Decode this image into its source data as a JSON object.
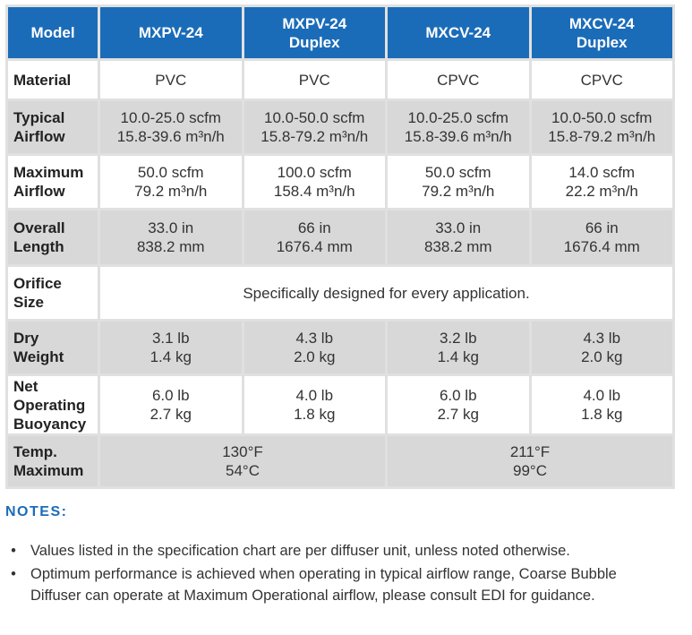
{
  "header": {
    "corner": "Model",
    "columns": [
      {
        "line1": "MXPV-24",
        "line2": ""
      },
      {
        "line1": "MXPV-24",
        "line2": "Duplex"
      },
      {
        "line1": "MXCV-24",
        "line2": ""
      },
      {
        "line1": "MXCV-24",
        "line2": "Duplex"
      }
    ]
  },
  "rows": {
    "material": {
      "label1": "Material",
      "label2": "",
      "cells": [
        {
          "l1": "PVC",
          "l2": ""
        },
        {
          "l1": "PVC",
          "l2": ""
        },
        {
          "l1": "CPVC",
          "l2": ""
        },
        {
          "l1": "CPVC",
          "l2": ""
        }
      ]
    },
    "typical_airflow": {
      "label1": "Typical",
      "label2": "Airflow",
      "cells": [
        {
          "l1": "10.0-25.0 scfm",
          "l2": "15.8-39.6 m³n/h"
        },
        {
          "l1": "10.0-50.0 scfm",
          "l2": "15.8-79.2 m³n/h"
        },
        {
          "l1": "10.0-25.0 scfm",
          "l2": "15.8-39.6 m³n/h"
        },
        {
          "l1": "10.0-50.0 scfm",
          "l2": "15.8-79.2 m³n/h"
        }
      ]
    },
    "maximum_airflow": {
      "label1": "Maximum",
      "label2": "Airflow",
      "cells": [
        {
          "l1": "50.0 scfm",
          "l2": "79.2 m³n/h"
        },
        {
          "l1": "100.0 scfm",
          "l2": "158.4 m³n/h"
        },
        {
          "l1": "50.0 scfm",
          "l2": "79.2 m³n/h"
        },
        {
          "l1": "14.0 scfm",
          "l2": "22.2 m³n/h"
        }
      ]
    },
    "overall_length": {
      "label1": "Overall",
      "label2": "Length",
      "cells": [
        {
          "l1": "33.0 in",
          "l2": "838.2 mm"
        },
        {
          "l1": "66 in",
          "l2": "1676.4 mm"
        },
        {
          "l1": "33.0 in",
          "l2": "838.2 mm"
        },
        {
          "l1": "66 in",
          "l2": "1676.4 mm"
        }
      ]
    },
    "orifice_size": {
      "label1": "Orifice",
      "label2": "Size",
      "value": "Specifically designed for every application."
    },
    "dry_weight": {
      "label1": "Dry",
      "label2": "Weight",
      "cells": [
        {
          "l1": "3.1 lb",
          "l2": "1.4 kg"
        },
        {
          "l1": "4.3 lb",
          "l2": "2.0 kg"
        },
        {
          "l1": "3.2 lb",
          "l2": "1.4 kg"
        },
        {
          "l1": "4.3 lb",
          "l2": "2.0 kg"
        }
      ]
    },
    "buoyancy": {
      "label1": "Net",
      "label2": "Operating",
      "label3": "Buoyancy",
      "cells": [
        {
          "l1": "6.0 lb",
          "l2": "2.7 kg"
        },
        {
          "l1": "4.0 lb",
          "l2": "1.8 kg"
        },
        {
          "l1": "6.0 lb",
          "l2": "2.7 kg"
        },
        {
          "l1": "4.0 lb",
          "l2": "1.8 kg"
        }
      ]
    },
    "temp_maximum": {
      "label1": "Temp.",
      "label2": "Maximum",
      "pvc": {
        "l1": "130°F",
        "l2": "54°C"
      },
      "cpvc": {
        "l1": "211°F",
        "l2": "99°C"
      }
    }
  },
  "notes": {
    "heading": "NOTES:",
    "bullet": "•",
    "items": [
      "Values listed in the specification chart are per diffuser unit, unless noted otherwise.",
      "Optimum performance is achieved when operating in typical airflow range, Coarse Bubble Diffuser can operate at Maximum Operational airflow, please consult EDI for guidance."
    ]
  },
  "colors": {
    "header_blue": "#1b6cb8",
    "row_grey": "#d8d8d8",
    "border_grey": "#e0e0e0",
    "text": "#333333"
  }
}
